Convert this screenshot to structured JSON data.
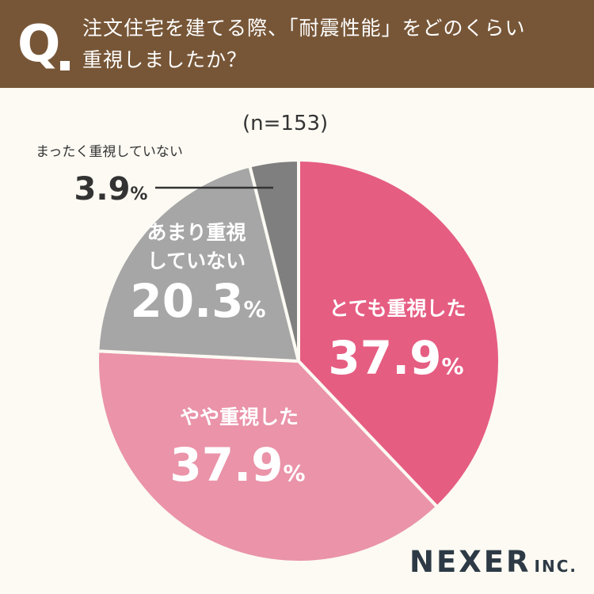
{
  "header": {
    "q_mark": "Q",
    "question_line1": "注文住宅を建てる際、「耐震性能」をどのくらい",
    "question_line2": "重視しましたか？"
  },
  "sample_size": "(n=153)",
  "brand": {
    "name": "NEXER",
    "suffix": "INC."
  },
  "chart_data": {
    "type": "pie",
    "unit": "%",
    "start_angle": "12 o'clock",
    "direction": "clockwise",
    "slices": [
      {
        "label": "とても重視した",
        "value": 37.9,
        "value_text": "37.9",
        "color": "#e65d82"
      },
      {
        "label": "やや重視した",
        "value": 37.9,
        "value_text": "37.9",
        "color": "#ea93a9"
      },
      {
        "label": "あまり重視していない",
        "label_lines": [
          "あまり重視",
          "していない"
        ],
        "value": 20.3,
        "value_text": "20.3",
        "color": "#a6a6a6"
      },
      {
        "label": "まったく重視していない",
        "value": 3.9,
        "value_text": "3.9",
        "color": "#7f7f7f"
      }
    ]
  }
}
